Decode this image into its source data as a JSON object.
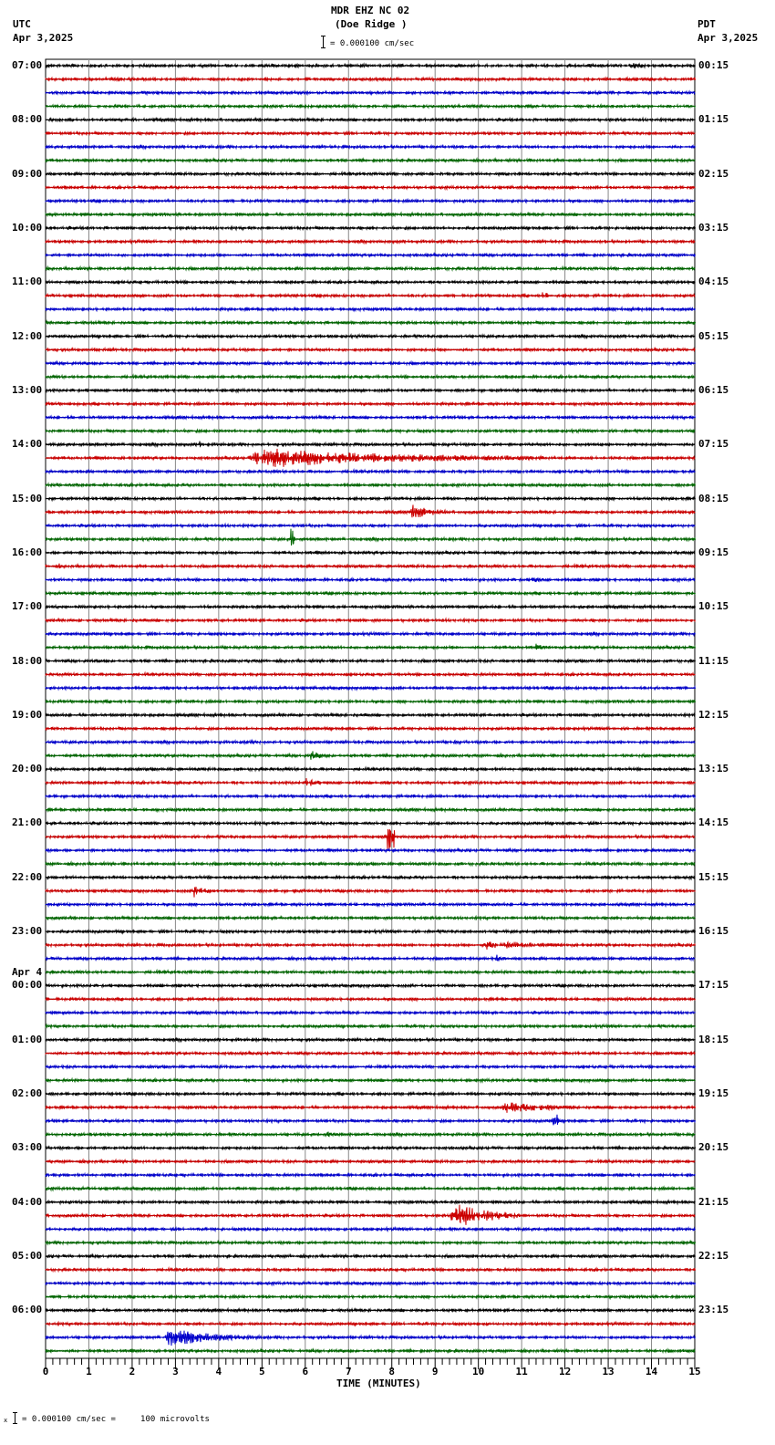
{
  "header": {
    "station": "MDR EHZ NC 02",
    "site": "(Doe Ridge )",
    "left_tz": "UTC",
    "left_date": "Apr 3,2025",
    "right_tz": "PDT",
    "right_date": "Apr 3,2025",
    "scale_label": "= 0.000100 cm/sec"
  },
  "footer": {
    "scale_note": "= 0.000100 cm/sec =     100 microvolts"
  },
  "colors": {
    "trace_cycle": [
      "#000000",
      "#cc0000",
      "#0000cc",
      "#006600"
    ],
    "grid": "#888888"
  },
  "chart_data": {
    "type": "line",
    "title": "MDR EHZ NC 02 (Doe Ridge ) helicorder",
    "xlabel": "TIME (MINUTES)",
    "ylabel": "",
    "x_ticks": [
      0,
      1,
      2,
      3,
      4,
      5,
      6,
      7,
      8,
      9,
      10,
      11,
      12,
      13,
      14,
      15
    ],
    "xlim": [
      0,
      15
    ],
    "minutes_per_line": 15,
    "lines": 96,
    "grid": true,
    "left_hour_labels": [
      "07:00",
      "08:00",
      "09:00",
      "10:00",
      "11:00",
      "12:00",
      "13:00",
      "14:00",
      "15:00",
      "16:00",
      "17:00",
      "18:00",
      "19:00",
      "20:00",
      "21:00",
      "22:00",
      "23:00",
      "00:00",
      "01:00",
      "02:00",
      "03:00",
      "04:00",
      "05:00",
      "06:00"
    ],
    "date_change_label": {
      "text": "Apr 4",
      "before_hour_index": 17
    },
    "right_hour_labels": [
      "00:15",
      "01:15",
      "02:15",
      "03:15",
      "04:15",
      "05:15",
      "06:15",
      "07:15",
      "08:15",
      "09:15",
      "10:15",
      "11:15",
      "12:15",
      "13:15",
      "14:15",
      "15:15",
      "16:15",
      "17:15",
      "18:15",
      "19:15",
      "20:15",
      "21:15",
      "22:15",
      "23:15"
    ],
    "events": [
      {
        "line": 0,
        "start_min": 13.5,
        "end_min": 15,
        "amp": 3
      },
      {
        "line": 17,
        "start_min": 5.5,
        "end_min": 6.8,
        "amp": 2.5
      },
      {
        "line": 17,
        "start_min": 11.4,
        "end_min": 11.6,
        "amp": 4
      },
      {
        "line": 27,
        "start_min": 2.5,
        "end_min": 3.2,
        "amp": 2
      },
      {
        "line": 28,
        "start_min": 3.5,
        "end_min": 3.6,
        "amp": 4
      },
      {
        "line": 29,
        "start_min": 4.7,
        "end_min": 11.5,
        "amp": 12
      },
      {
        "line": 31,
        "start_min": 0.2,
        "end_min": 1.2,
        "amp": 2.5
      },
      {
        "line": 33,
        "start_min": 8.4,
        "end_min": 9.5,
        "amp": 9
      },
      {
        "line": 35,
        "start_min": 5.65,
        "end_min": 5.75,
        "amp": 12
      },
      {
        "line": 37,
        "start_min": 0.3,
        "end_min": 0.6,
        "amp": 3
      },
      {
        "line": 38,
        "start_min": 11.2,
        "end_min": 11.8,
        "amp": 5
      },
      {
        "line": 43,
        "start_min": 11.3,
        "end_min": 12,
        "amp": 4
      },
      {
        "line": 50,
        "start_min": 4.6,
        "end_min": 5.4,
        "amp": 3
      },
      {
        "line": 50,
        "start_min": 9.4,
        "end_min": 9.8,
        "amp": 3
      },
      {
        "line": 51,
        "start_min": 6.1,
        "end_min": 6.6,
        "amp": 7
      },
      {
        "line": 53,
        "start_min": 6.0,
        "end_min": 6.6,
        "amp": 6
      },
      {
        "line": 57,
        "start_min": 7.9,
        "end_min": 8.05,
        "amp": 14
      },
      {
        "line": 61,
        "start_min": 3.4,
        "end_min": 4.0,
        "amp": 9
      },
      {
        "line": 61,
        "start_min": 5.7,
        "end_min": 6.5,
        "amp": 3
      },
      {
        "line": 65,
        "start_min": 10.0,
        "end_min": 13.8,
        "amp": 5
      },
      {
        "line": 66,
        "start_min": 10.4,
        "end_min": 10.8,
        "amp": 5
      },
      {
        "line": 69,
        "start_min": 6.4,
        "end_min": 7.2,
        "amp": 3
      },
      {
        "line": 77,
        "start_min": 10.5,
        "end_min": 13.5,
        "amp": 6
      },
      {
        "line": 78,
        "start_min": 11.7,
        "end_min": 11.85,
        "amp": 8
      },
      {
        "line": 79,
        "start_min": 6.5,
        "end_min": 6.9,
        "amp": 5
      },
      {
        "line": 85,
        "start_min": 9.35,
        "end_min": 11.0,
        "amp": 16
      },
      {
        "line": 94,
        "start_min": 2.75,
        "end_min": 5.0,
        "amp": 11
      }
    ]
  }
}
